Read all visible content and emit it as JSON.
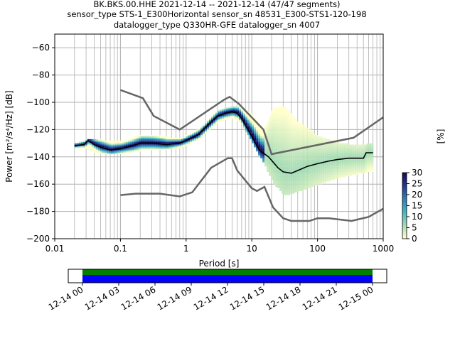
{
  "chart_data": {
    "type": "heatmap",
    "title_lines": [
      "BK.BKS.00.HHE   2021-12-14 -- 2021-12-14  (47/47 segments)",
      "sensor_type STS-1_E300Horizontal sensor_sn 48531_E300-STS1-120-198",
      "datalogger_type Q330HR-GFE datalogger_sn 4007"
    ],
    "xlabel": "Period [s]",
    "ylabel": "Power [m²/s⁴/Hz] [dB]",
    "xscale": "log",
    "xlim": [
      0.01,
      1000
    ],
    "ylim": [
      -200,
      -50
    ],
    "x_ticks": [
      0.01,
      0.1,
      1,
      10,
      100,
      1000
    ],
    "x_tick_labels": [
      "0.01",
      "0.1",
      "1",
      "10",
      "100",
      "1000"
    ],
    "y_ticks": [
      -200,
      -180,
      -160,
      -140,
      -120,
      -100,
      -80,
      -60
    ],
    "y_tick_labels": [
      "−200",
      "−180",
      "−160",
      "−140",
      "−120",
      "−100",
      "−80",
      "−60"
    ],
    "grid": true,
    "colorbar": {
      "label": "[%]",
      "range": [
        0,
        30
      ],
      "ticks": [
        "0",
        "5",
        "10",
        "15",
        "20",
        "25",
        "30"
      ]
    },
    "mean": [
      [
        0.02,
        -132
      ],
      [
        0.028,
        -131
      ],
      [
        0.032,
        -128
      ],
      [
        0.04,
        -131
      ],
      [
        0.05,
        -133
      ],
      [
        0.07,
        -135
      ],
      [
        0.1,
        -134
      ],
      [
        0.15,
        -132
      ],
      [
        0.2,
        -130
      ],
      [
        0.3,
        -130
      ],
      [
        0.5,
        -131
      ],
      [
        0.8,
        -130
      ],
      [
        1,
        -128
      ],
      [
        1.5,
        -124
      ],
      [
        2,
        -118
      ],
      [
        3,
        -110
      ],
      [
        4,
        -108
      ],
      [
        5,
        -107
      ],
      [
        6,
        -108
      ],
      [
        7,
        -112
      ],
      [
        10,
        -125
      ],
      [
        13,
        -135
      ],
      [
        18,
        -140
      ],
      [
        25,
        -148
      ],
      [
        30,
        -151
      ],
      [
        40,
        -152
      ],
      [
        50,
        -150
      ],
      [
        70,
        -147
      ],
      [
        100,
        -145
      ],
      [
        150,
        -143
      ],
      [
        200,
        -142
      ],
      [
        300,
        -141
      ],
      [
        500,
        -141
      ],
      [
        550,
        -137
      ],
      [
        700,
        -137
      ]
    ],
    "histogram_band": [
      [
        0.02,
        -133,
        -131
      ],
      [
        0.03,
        -134,
        -128
      ],
      [
        0.05,
        -138,
        -128
      ],
      [
        0.1,
        -137,
        -129
      ],
      [
        0.2,
        -135,
        -124
      ],
      [
        0.4,
        -135,
        -125
      ],
      [
        0.8,
        -133,
        -127
      ],
      [
        1.5,
        -127,
        -120
      ],
      [
        3,
        -114,
        -106
      ],
      [
        5,
        -111,
        -103
      ],
      [
        7,
        -116,
        -105
      ],
      [
        10,
        -130,
        -110
      ],
      [
        15,
        -145,
        -120
      ],
      [
        20,
        -158,
        -105
      ],
      [
        30,
        -168,
        -103
      ],
      [
        50,
        -165,
        -115
      ],
      [
        100,
        -160,
        -125
      ],
      [
        200,
        -155,
        -130
      ],
      [
        400,
        -152,
        -132
      ],
      [
        700,
        -150,
        -130
      ]
    ],
    "nhnm": [
      [
        0.1,
        -91
      ],
      [
        0.22,
        -97
      ],
      [
        0.32,
        -110
      ],
      [
        0.8,
        -120
      ],
      [
        3.8,
        -98
      ],
      [
        4.6,
        -96
      ],
      [
        6.3,
        -101
      ],
      [
        15,
        -120
      ],
      [
        20,
        -138
      ],
      [
        354,
        -126
      ],
      [
        1000,
        -111
      ]
    ],
    "nlnm": [
      [
        0.1,
        -168
      ],
      [
        0.17,
        -167
      ],
      [
        0.4,
        -167
      ],
      [
        0.8,
        -169
      ],
      [
        1.24,
        -166
      ],
      [
        2.4,
        -148
      ],
      [
        4.3,
        -141
      ],
      [
        5,
        -141
      ],
      [
        6,
        -150
      ],
      [
        10,
        -163
      ],
      [
        12,
        -165
      ],
      [
        15.6,
        -162
      ],
      [
        21,
        -177
      ],
      [
        30,
        -185
      ],
      [
        40,
        -187
      ],
      [
        75,
        -187
      ],
      [
        100,
        -185
      ],
      [
        150,
        -185
      ],
      [
        330,
        -187
      ],
      [
        600,
        -184
      ],
      [
        1000,
        -178
      ]
    ]
  },
  "coverage": {
    "tick_labels": [
      "12-14 00",
      "12-14 03",
      "12-14 06",
      "12-14 09",
      "12-14 12",
      "12-14 15",
      "12-14 18",
      "12-14 21",
      "12-15 00"
    ],
    "colors": {
      "data": "#008000",
      "processed": "#0000ff"
    }
  }
}
